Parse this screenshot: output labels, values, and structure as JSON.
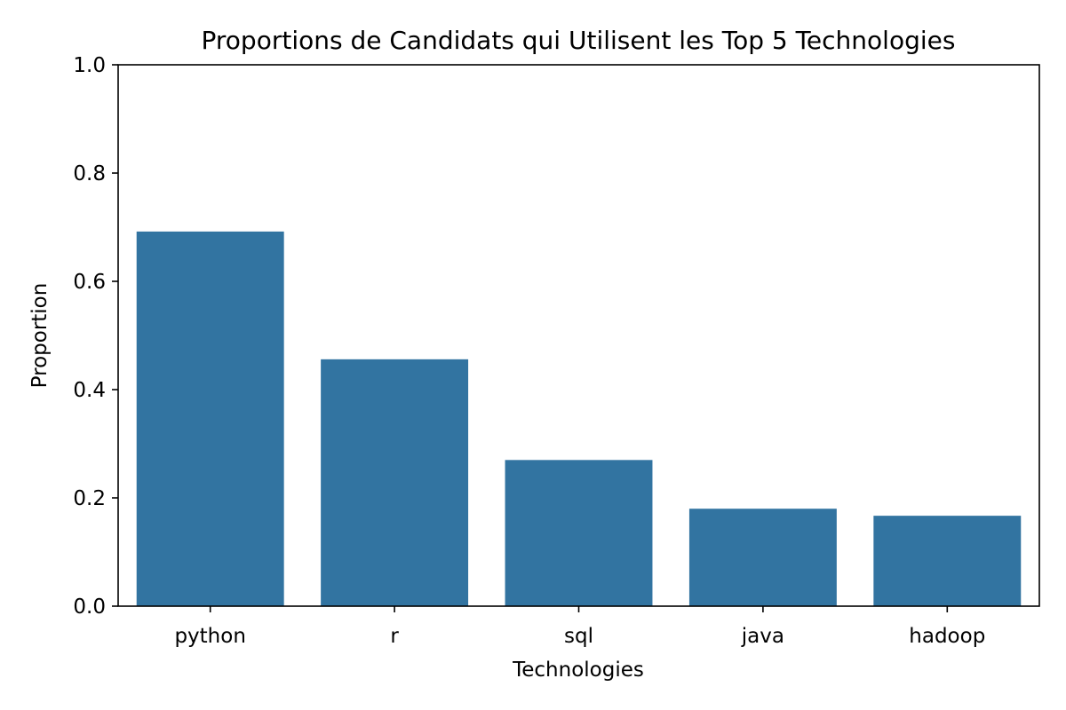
{
  "chart_data": {
    "type": "bar",
    "title": "Proportions de Candidats qui Utilisent les Top 5 Technologies",
    "xlabel": "Technologies",
    "ylabel": "Proportion",
    "categories": [
      "python",
      "r",
      "sql",
      "java",
      "hadoop"
    ],
    "values": [
      0.692,
      0.456,
      0.27,
      0.18,
      0.167
    ],
    "ylim": [
      0,
      1.0
    ],
    "yticks": [
      "0.0",
      "0.2",
      "0.4",
      "0.6",
      "0.8",
      "1.0"
    ],
    "bar_color": "#3274a1",
    "grid": false,
    "legend": "none"
  }
}
